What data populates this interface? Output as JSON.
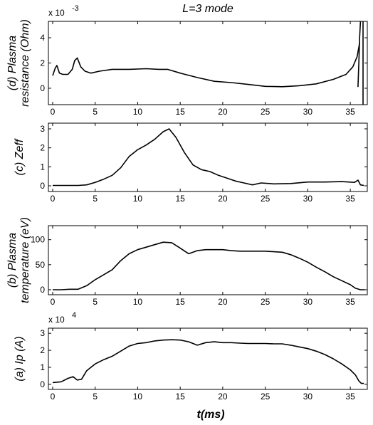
{
  "figure": {
    "title": "L=3 mode",
    "xlabel": "t(ms)"
  },
  "chart_data": [
    {
      "type": "line",
      "ylabel": [
        "(d) Plasma",
        "resistance (Ohm)"
      ],
      "ylabel_short": "(d) Plasma resistance (Ohm)",
      "multiplier": "x 10",
      "exponent": "-3",
      "xlim": [
        -0.5,
        37
      ],
      "ylim": [
        -1.3,
        5.3
      ],
      "xticks": [
        0,
        5,
        10,
        15,
        20,
        25,
        30,
        35
      ],
      "yticks": [
        0,
        2,
        4
      ],
      "series": [
        {
          "x": [
            0,
            0.3,
            0.5,
            0.8,
            1.2,
            1.8,
            2.3,
            2.6,
            2.9,
            3.3,
            3.8,
            4.5,
            5.5,
            7,
            9,
            11,
            12.5,
            13.5,
            15,
            17,
            19,
            21,
            23,
            25,
            27,
            29,
            31,
            33,
            34.5,
            35.3,
            35.8,
            36.1
          ],
          "values": [
            1.0,
            1.6,
            1.8,
            1.2,
            1.1,
            1.1,
            1.5,
            2.2,
            2.4,
            1.7,
            1.35,
            1.2,
            1.35,
            1.5,
            1.5,
            1.55,
            1.5,
            1.5,
            1.2,
            0.85,
            0.55,
            0.45,
            0.3,
            0.15,
            0.12,
            0.2,
            0.35,
            0.7,
            1.1,
            1.7,
            2.5,
            3.6
          ]
        },
        {
          "x": [
            35.9,
            36.0,
            36.1,
            36.2
          ],
          "values": [
            0.1,
            2.0,
            4.0,
            5.3
          ]
        },
        {
          "x": [
            36.5,
            36.5
          ],
          "values": [
            -1.3,
            5.3
          ]
        }
      ]
    },
    {
      "type": "line",
      "ylabel": [
        "(c) Zeff"
      ],
      "ylabel_short": "(c) Zeff",
      "xlim": [
        -0.5,
        37
      ],
      "ylim": [
        -0.3,
        3.3
      ],
      "xticks": [
        0,
        5,
        10,
        15,
        20,
        25,
        30,
        35
      ],
      "yticks": [
        0,
        1,
        2,
        3
      ],
      "series": [
        {
          "x": [
            0,
            1,
            2,
            3,
            4,
            5,
            6,
            7,
            8,
            9,
            10,
            11,
            12,
            13,
            13.7,
            14.5,
            15.5,
            16.5,
            17.5,
            18.5,
            19.5,
            20.5,
            21.5,
            22.5,
            23.5,
            24.5,
            26,
            28,
            30,
            32,
            34,
            35.5,
            35.9,
            36.2,
            36.6
          ],
          "values": [
            0.02,
            0.02,
            0.02,
            0.02,
            0.05,
            0.18,
            0.35,
            0.55,
            0.95,
            1.55,
            1.9,
            2.15,
            2.45,
            2.85,
            3.0,
            2.55,
            1.75,
            1.1,
            0.85,
            0.75,
            0.55,
            0.4,
            0.25,
            0.15,
            0.05,
            0.15,
            0.1,
            0.12,
            0.2,
            0.2,
            0.22,
            0.18,
            0.3,
            0.05,
            0.02
          ]
        }
      ]
    },
    {
      "type": "line",
      "ylabel": [
        "(b) Plasma",
        "temperature (eV)"
      ],
      "ylabel_short": "(b) Plasma temperature (eV)",
      "xlim": [
        -0.5,
        37
      ],
      "ylim": [
        -10,
        128
      ],
      "xticks": [
        0,
        5,
        10,
        15,
        20,
        25,
        30,
        35
      ],
      "yticks": [
        0,
        50,
        100
      ],
      "series": [
        {
          "x": [
            0,
            1,
            2,
            3,
            4,
            5,
            6,
            7,
            8,
            9,
            10,
            11,
            12,
            13,
            14,
            15,
            16,
            17,
            18,
            19,
            20,
            21,
            22,
            23,
            24,
            25,
            26,
            27,
            28,
            29,
            30,
            31,
            32,
            33,
            34,
            35,
            35.6,
            36.2,
            36.7
          ],
          "values": [
            0,
            0,
            1,
            1,
            8,
            20,
            30,
            40,
            58,
            72,
            80,
            85,
            90,
            95,
            94,
            83,
            72,
            78,
            80,
            80,
            80,
            78,
            77,
            77,
            77,
            77,
            76,
            75,
            70,
            63,
            55,
            45,
            36,
            26,
            18,
            10,
            3,
            0,
            0
          ]
        }
      ]
    },
    {
      "type": "line",
      "ylabel": [
        "(a) Ip (A)"
      ],
      "ylabel_short": "(a) Ip (A)",
      "multiplier": "x 10",
      "exponent": "4",
      "xlim": [
        -0.5,
        37
      ],
      "ylim": [
        -0.3,
        3.3
      ],
      "xticks": [
        0,
        5,
        10,
        15,
        20,
        25,
        30,
        35
      ],
      "yticks": [
        0,
        1,
        2,
        3
      ],
      "series": [
        {
          "x": [
            0,
            1,
            1.8,
            2.4,
            2.9,
            3.4,
            4,
            5,
            6,
            7,
            8,
            9,
            10,
            11,
            12,
            13,
            14,
            15,
            16,
            17,
            18,
            19,
            20,
            21,
            22,
            23,
            24,
            25,
            26,
            27,
            28,
            29,
            30,
            31,
            32,
            33,
            34,
            35,
            35.6,
            36,
            36.3,
            36.6
          ],
          "values": [
            0.1,
            0.15,
            0.35,
            0.45,
            0.25,
            0.3,
            0.8,
            1.2,
            1.45,
            1.65,
            1.95,
            2.25,
            2.4,
            2.45,
            2.55,
            2.6,
            2.62,
            2.6,
            2.5,
            2.3,
            2.45,
            2.5,
            2.45,
            2.45,
            2.42,
            2.4,
            2.4,
            2.4,
            2.38,
            2.38,
            2.3,
            2.2,
            2.1,
            1.95,
            1.75,
            1.5,
            1.2,
            0.85,
            0.55,
            0.2,
            0.05,
            0.05
          ]
        }
      ]
    }
  ]
}
